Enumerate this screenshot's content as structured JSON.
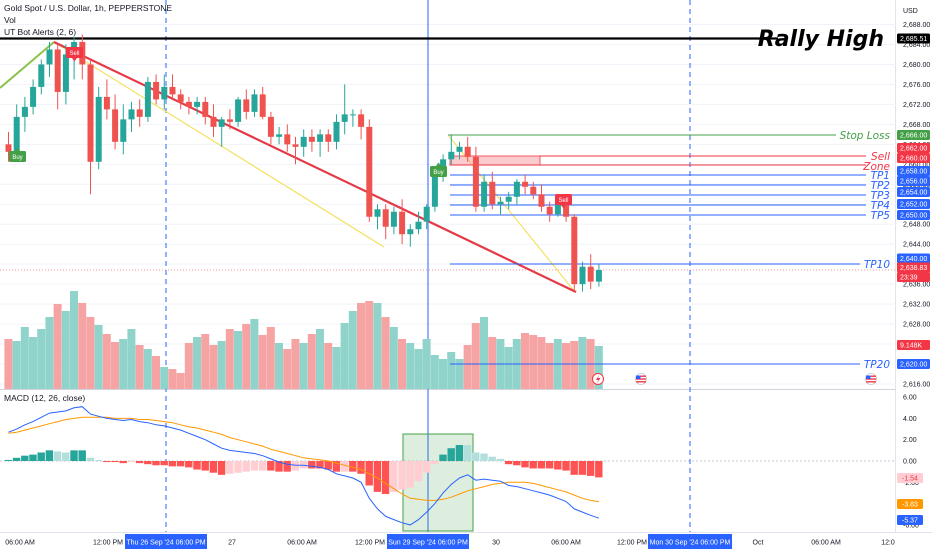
{
  "header": {
    "title": "Gold Spot / U.S. Dollar, 1h, PEPPERSTONE",
    "vol_label": "Vol",
    "indicator_label": "UT Bot Alerts (2, 6)"
  },
  "price_axis": {
    "currency": "USD",
    "ticks": [
      "2,688.00",
      "2,684.00",
      "2,680.00",
      "2,676.00",
      "2,672.00",
      "2,668.00",
      "2,664.00",
      "2,660.00",
      "2,656.00",
      "2,652.00",
      "2,648.00",
      "2,644.00",
      "2,640.00",
      "2,636.00",
      "2,632.00",
      "2,628.00",
      "2,624.00",
      "2,620.00",
      "2,616.00"
    ],
    "tags": [
      {
        "text": "2,685.51",
        "color": "#000000"
      },
      {
        "text": "2,666.00",
        "color": "#43a047"
      },
      {
        "text": "2,662.00",
        "color": "#f23645"
      },
      {
        "text": "2,660.00",
        "color": "#f23645"
      },
      {
        "text": "2,658.00",
        "color": "#2962ff"
      },
      {
        "text": "2,656.00",
        "color": "#2962ff"
      },
      {
        "text": "2,654.00",
        "color": "#2962ff"
      },
      {
        "text": "2,652.00",
        "color": "#2962ff"
      },
      {
        "text": "2,650.00",
        "color": "#2962ff"
      },
      {
        "text": "2,640.00",
        "color": "#2962ff"
      },
      {
        "text": "2,638.83",
        "color": "#f23645"
      },
      {
        "text": "23:39",
        "color": "#f23645"
      },
      {
        "text": "9.148K",
        "color": "#f23645"
      },
      {
        "text": "2,620.00",
        "color": "#2962ff"
      }
    ]
  },
  "macd_axis": {
    "label": "MACD (12, 26, close)",
    "ticks": [
      "6.00",
      "4.00",
      "2.00",
      "0.00",
      "-2.00",
      "-4.00",
      "-6.00"
    ],
    "tags": [
      {
        "text": "-1.54",
        "color": "#ffcdd2",
        "text_color": "#f23645"
      },
      {
        "text": "-3.83",
        "color": "#ff9800",
        "text_color": "#ffffff"
      },
      {
        "text": "-5.37",
        "color": "#2962ff",
        "text_color": "#ffffff"
      }
    ]
  },
  "time_axis": {
    "labels": [
      "06:00 AM",
      "12:00 PM",
      "27",
      "06:00 AM",
      "12:00 PM",
      "30",
      "06:00 AM",
      "12:00 PM",
      "Oct",
      "06:00 AM",
      "12:0"
    ],
    "highlighted": [
      "Thu 26 Sep '24   06:00 PM",
      "Sun 29 Sep '24   06:00 PM",
      "Mon 30 Sep '24   06:00 PM"
    ]
  },
  "annotations": {
    "rally_high": "Rally High",
    "stop_loss": "Stop Loss",
    "sell": "Sell",
    "zone": "Zone",
    "tp1": "TP1",
    "tp2": "TP2",
    "tp3": "TP3",
    "tp4": "TP4",
    "tp5": "TP5",
    "tp10": "TP10",
    "tp20": "TP20",
    "buy_signal": "Buy",
    "sell_signal": "Sell"
  },
  "colors": {
    "up": "#26a69a",
    "down": "#ef5350",
    "vol_up": "#8fd3ca",
    "vol_down": "#f6a3a4",
    "macd_line": "#2962ff",
    "signal_line": "#ff9800",
    "trendline": "#e53945",
    "stop_loss": "#43a047",
    "targets": "#2962ff",
    "sell": "#f23645",
    "rally_high": "#000000",
    "yellow_line": "#f5e163",
    "green_line": "#8bc34a"
  },
  "chart_data": {
    "type": "candlestick",
    "title": "Gold Spot / U.S. Dollar, 1h, PEPPERSTONE",
    "price_range": [
      2614,
      2690
    ],
    "ohlc": [
      [
        2664.0,
        2666.5,
        2660.5,
        2662.5
      ],
      [
        2662.5,
        2672.0,
        2662.0,
        2669.5
      ],
      [
        2669.5,
        2673.5,
        2666.5,
        2671.5
      ],
      [
        2671.5,
        2677.0,
        2670.0,
        2675.5
      ],
      [
        2675.5,
        2681.0,
        2674.0,
        2680.0
      ],
      [
        2680.0,
        2684.5,
        2677.5,
        2683.0
      ],
      [
        2683.0,
        2684.0,
        2671.0,
        2674.5
      ],
      [
        2674.5,
        2684.0,
        2672.0,
        2682.0
      ],
      [
        2682.0,
        2685.5,
        2677.0,
        2684.5
      ],
      [
        2684.5,
        2686.0,
        2677.0,
        2680.0
      ],
      [
        2680.0,
        2681.0,
        2654.0,
        2660.5
      ],
      [
        2660.5,
        2675.5,
        2659.0,
        2673.5
      ],
      [
        2673.5,
        2677.0,
        2669.0,
        2671.0
      ],
      [
        2671.0,
        2674.0,
        2663.0,
        2664.5
      ],
      [
        2664.5,
        2672.0,
        2662.0,
        2669.0
      ],
      [
        2669.0,
        2672.5,
        2666.5,
        2671.0
      ],
      [
        2671.0,
        2673.0,
        2667.5,
        2669.5
      ],
      [
        2669.5,
        2677.5,
        2668.5,
        2676.5
      ],
      [
        2676.5,
        2678.0,
        2672.0,
        2673.0
      ],
      [
        2673.0,
        2678.0,
        2671.0,
        2675.5
      ],
      [
        2675.5,
        2678.0,
        2673.0,
        2674.0
      ],
      [
        2674.0,
        2675.0,
        2671.0,
        2672.5
      ],
      [
        2672.5,
        2673.5,
        2670.0,
        2671.5
      ],
      [
        2671.5,
        2673.5,
        2670.0,
        2672.5
      ],
      [
        2672.5,
        2673.5,
        2668.0,
        2669.5
      ],
      [
        2669.5,
        2672.0,
        2665.5,
        2667.5
      ],
      [
        2667.5,
        2669.5,
        2663.5,
        2669.0
      ],
      [
        2669.0,
        2671.0,
        2667.0,
        2668.5
      ],
      [
        2668.5,
        2673.5,
        2667.5,
        2673.0
      ],
      [
        2673.0,
        2675.0,
        2669.0,
        2670.5
      ],
      [
        2670.5,
        2675.0,
        2669.5,
        2674.0
      ],
      [
        2674.0,
        2675.5,
        2669.0,
        2669.5
      ],
      [
        2669.5,
        2670.5,
        2664.0,
        2665.5
      ],
      [
        2665.5,
        2667.5,
        2664.0,
        2666.0
      ],
      [
        2666.0,
        2668.0,
        2662.5,
        2664.0
      ],
      [
        2664.0,
        2665.5,
        2660.0,
        2663.5
      ],
      [
        2663.5,
        2667.0,
        2661.5,
        2665.5
      ],
      [
        2665.5,
        2667.0,
        2662.5,
        2664.5
      ],
      [
        2664.5,
        2667.0,
        2661.5,
        2666.0
      ],
      [
        2666.0,
        2667.0,
        2662.5,
        2664.5
      ],
      [
        2664.5,
        2670.0,
        2663.0,
        2668.5
      ],
      [
        2668.5,
        2676.0,
        2666.0,
        2670.0
      ],
      [
        2670.0,
        2671.0,
        2667.5,
        2670.0
      ],
      [
        2670.0,
        2671.0,
        2665.0,
        2667.5
      ],
      [
        2667.5,
        2669.0,
        2648.5,
        2649.5
      ],
      [
        2649.5,
        2652.0,
        2647.0,
        2651.0
      ],
      [
        2651.0,
        2652.0,
        2645.0,
        2647.5
      ],
      [
        2647.5,
        2651.5,
        2646.0,
        2650.5
      ],
      [
        2650.5,
        2653.0,
        2644.0,
        2646.0
      ],
      [
        2646.0,
        2648.0,
        2643.5,
        2647.0
      ],
      [
        2647.0,
        2650.5,
        2646.0,
        2648.5
      ],
      [
        2648.5,
        2652.0,
        2647.0,
        2651.5
      ],
      [
        2651.5,
        2658.5,
        2650.5,
        2657.5
      ],
      [
        2657.5,
        2662.0,
        2656.5,
        2661.0
      ],
      [
        2661.0,
        2666.0,
        2660.0,
        2662.5
      ],
      [
        2662.5,
        2664.5,
        2661.0,
        2663.5
      ],
      [
        2663.5,
        2665.5,
        2660.5,
        2661.5
      ],
      [
        2661.5,
        2663.5,
        2650.5,
        2651.5
      ],
      [
        2651.5,
        2658.0,
        2650.5,
        2656.5
      ],
      [
        2656.5,
        2658.5,
        2651.0,
        2652.0
      ],
      [
        2652.0,
        2653.5,
        2650.0,
        2652.5
      ],
      [
        2652.5,
        2654.5,
        2651.0,
        2653.5
      ],
      [
        2653.5,
        2657.0,
        2652.0,
        2656.5
      ],
      [
        2656.5,
        2658.0,
        2654.0,
        2655.5
      ],
      [
        2655.5,
        2656.5,
        2653.0,
        2654.0
      ],
      [
        2654.0,
        2656.0,
        2650.5,
        2651.5
      ],
      [
        2651.5,
        2652.5,
        2648.5,
        2650.0
      ],
      [
        2650.0,
        2653.0,
        2649.5,
        2652.5
      ],
      [
        2652.5,
        2653.0,
        2648.5,
        2649.5
      ],
      [
        2649.5,
        2650.0,
        2634.5,
        2636.0
      ],
      [
        2636.0,
        2640.5,
        2634.5,
        2639.5
      ],
      [
        2639.5,
        2642.0,
        2635.0,
        2636.5
      ],
      [
        2636.5,
        2640.0,
        2635.5,
        2638.83
      ]
    ],
    "volume": [
      0.5,
      0.48,
      0.62,
      0.52,
      0.6,
      0.72,
      0.85,
      0.78,
      0.98,
      0.86,
      0.72,
      0.64,
      0.55,
      0.47,
      0.5,
      0.6,
      0.44,
      0.4,
      0.33,
      0.22,
      0.2,
      0.16,
      0.46,
      0.52,
      0.55,
      0.44,
      0.48,
      0.6,
      0.58,
      0.65,
      0.7,
      0.54,
      0.62,
      0.46,
      0.4,
      0.5,
      0.46,
      0.55,
      0.6,
      0.46,
      0.42,
      0.66,
      0.78,
      0.86,
      0.88,
      0.86,
      0.72,
      0.62,
      0.5,
      0.46,
      0.4,
      0.5,
      0.34,
      0.3,
      0.37,
      0.3,
      0.44,
      0.66,
      0.72,
      0.52,
      0.5,
      0.42,
      0.5,
      0.56,
      0.54,
      0.52,
      0.46,
      0.5,
      0.46,
      0.48,
      0.52,
      0.5,
      0.43
    ],
    "macd_range": [
      -6.5,
      6.5
    ],
    "macd": [
      2.7,
      3.0,
      3.4,
      3.7,
      4.1,
      4.5,
      4.6,
      4.7,
      5.0,
      5.1,
      4.4,
      4.2,
      4.0,
      3.9,
      3.8,
      3.9,
      3.7,
      3.6,
      3.4,
      3.3,
      3.1,
      2.9,
      2.6,
      2.3,
      2.0,
      1.6,
      1.2,
      1.0,
      0.9,
      0.8,
      0.7,
      0.5,
      0.2,
      -0.1,
      -0.3,
      -0.4,
      -0.4,
      -0.5,
      -0.6,
      -0.8,
      -1.2,
      -1.4,
      -1.6,
      -2.0,
      -3.5,
      -4.5,
      -5.2,
      -5.5,
      -5.8,
      -6.0,
      -5.5,
      -4.8,
      -4.0,
      -3.0,
      -2.2,
      -1.6,
      -1.3,
      -1.8,
      -1.7,
      -1.8,
      -1.9,
      -2.3,
      -2.4,
      -2.6,
      -2.8,
      -3.0,
      -3.2,
      -3.5,
      -3.8,
      -4.5,
      -4.8,
      -5.1,
      -5.37
    ],
    "signal": [
      2.6,
      2.7,
      2.9,
      3.1,
      3.3,
      3.5,
      3.7,
      3.9,
      4.0,
      4.1,
      4.1,
      4.1,
      4.1,
      4.0,
      4.0,
      4.0,
      3.9,
      3.9,
      3.8,
      3.7,
      3.6,
      3.4,
      3.2,
      3.1,
      2.9,
      2.7,
      2.5,
      2.2,
      2.0,
      1.8,
      1.6,
      1.4,
      1.1,
      0.9,
      0.7,
      0.5,
      0.3,
      0.2,
      0.1,
      0.0,
      -0.2,
      -0.4,
      -0.6,
      -0.8,
      -1.2,
      -1.6,
      -2.1,
      -2.6,
      -3.1,
      -3.5,
      -3.6,
      -3.7,
      -3.7,
      -3.6,
      -3.4,
      -3.1,
      -2.8,
      -2.6,
      -2.4,
      -2.2,
      -2.1,
      -2.0,
      -2.0,
      -2.0,
      -2.1,
      -2.3,
      -2.5,
      -2.7,
      -2.9,
      -3.2,
      -3.5,
      -3.7,
      -3.83
    ],
    "levels": {
      "rally_high": 2685.51,
      "stop_loss": 2666.0,
      "sell_zone": [
        2660.0,
        2662.0
      ],
      "tp1": 2658.0,
      "tp2": 2656.0,
      "tp3": 2654.0,
      "tp4": 2652.0,
      "tp5": 2650.0,
      "tp10": 2640.0,
      "tp20": 2620.0,
      "last_price": 2638.83
    }
  }
}
